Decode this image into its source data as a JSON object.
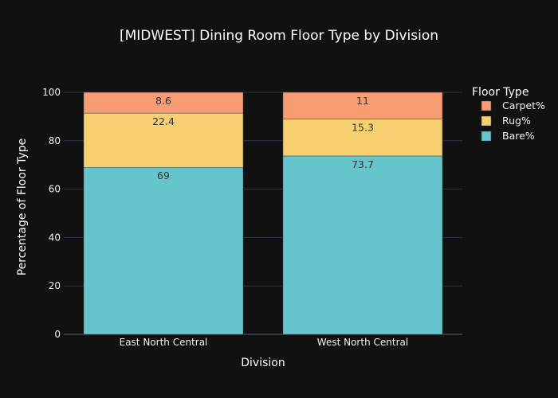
{
  "chart_data": {
    "type": "bar",
    "barmode": "stack",
    "title": "[MIDWEST] Dining Room Floor Type by Division",
    "xlabel": "Division",
    "ylabel": "Percentage of Floor Type",
    "categories": [
      "East North Central",
      "West North Central"
    ],
    "ylim": [
      0,
      100
    ],
    "yticks": [
      0,
      20,
      40,
      60,
      80,
      100
    ],
    "grid": true,
    "legend": {
      "title": "Floor Type",
      "placement": "top-right",
      "entries": [
        "Carpet%",
        "Rug%",
        "Bare%"
      ]
    },
    "series": [
      {
        "name": "Bare%",
        "values": [
          69,
          73.7
        ],
        "labels": [
          "69",
          "73.7"
        ],
        "color": "#66c5cc"
      },
      {
        "name": "Rug%",
        "values": [
          22.4,
          15.3
        ],
        "labels": [
          "22.4",
          "15.3"
        ],
        "color": "#f6cf71"
      },
      {
        "name": "Carpet%",
        "values": [
          8.6,
          11
        ],
        "labels": [
          "8.6",
          "11"
        ],
        "color": "#f89c74"
      }
    ]
  }
}
